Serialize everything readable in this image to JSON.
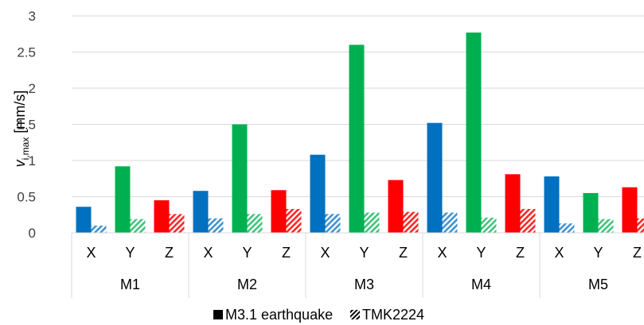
{
  "chart_data": {
    "type": "bar",
    "ylabel_main": "v",
    "ylabel_sub": "i,max",
    "ylabel_unit": " [mm/s]",
    "ylim": [
      0,
      3
    ],
    "yticks": [
      "0",
      "0.5",
      "1",
      "1.5",
      "2",
      "2.5",
      "3"
    ],
    "grid": true,
    "legend_position": "bottom",
    "groups": [
      {
        "name": "M1",
        "components": [
          "X",
          "Y",
          "Z"
        ]
      },
      {
        "name": "M2",
        "components": [
          "X",
          "Y",
          "Z"
        ]
      },
      {
        "name": "M3",
        "components": [
          "X",
          "Y",
          "Z"
        ]
      },
      {
        "name": "M4",
        "components": [
          "X",
          "Y",
          "Z"
        ]
      },
      {
        "name": "M5",
        "components": [
          "X",
          "Y",
          "Z"
        ]
      }
    ],
    "component_colors": {
      "X": "#0070C0",
      "Y": "#00B050",
      "Z": "#FF0000"
    },
    "series": [
      {
        "name": "M3.1 earthquake",
        "pattern": "solid",
        "values": [
          [
            0.36,
            0.92,
            0.45
          ],
          [
            0.58,
            1.5,
            0.59
          ],
          [
            1.08,
            2.6,
            0.73
          ],
          [
            1.52,
            2.77,
            0.81
          ],
          [
            0.78,
            0.55,
            0.63
          ]
        ]
      },
      {
        "name": "TMK2224",
        "pattern": "hatched",
        "values": [
          [
            0.1,
            0.19,
            0.26
          ],
          [
            0.2,
            0.26,
            0.33
          ],
          [
            0.26,
            0.28,
            0.29
          ],
          [
            0.28,
            0.21,
            0.33
          ],
          [
            0.13,
            0.19,
            0.2
          ]
        ]
      }
    ]
  }
}
